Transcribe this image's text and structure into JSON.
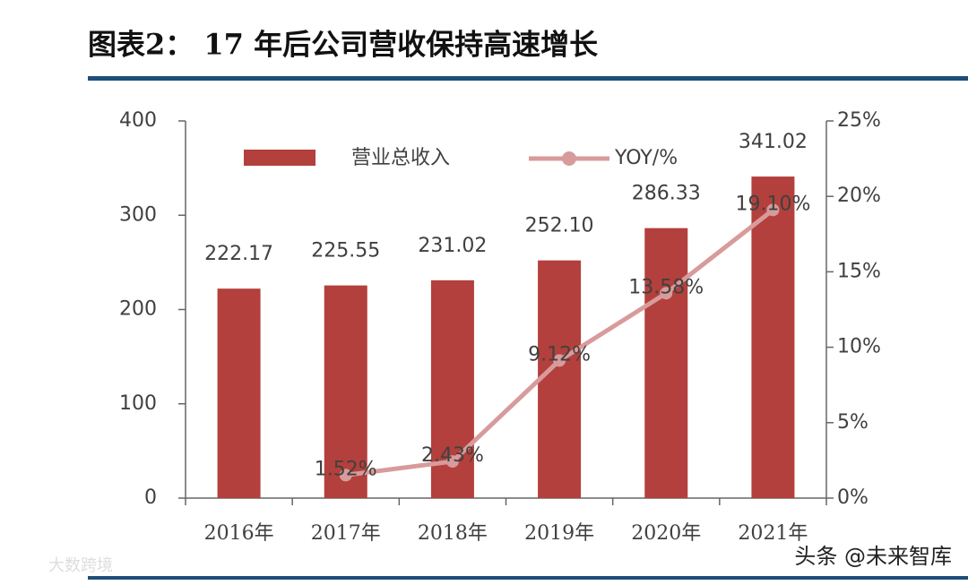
{
  "chart_data": {
    "type": "bar",
    "title": "图表2：  17 年后公司营收保持高速增长",
    "categories": [
      "2016年",
      "2017年",
      "2018年",
      "2019年",
      "2020年",
      "2021年"
    ],
    "series": [
      {
        "name": "营业总收入",
        "type": "bar",
        "color": "#b3403c",
        "values": [
          222.17,
          225.55,
          231.02,
          252.1,
          286.33,
          341.02
        ],
        "value_labels": [
          "222.17",
          "225.55",
          "231.02",
          "252.10",
          "286.33",
          "341.02"
        ]
      },
      {
        "name": "YOY/%",
        "type": "line",
        "axis": "y2",
        "color": "#d89b9b",
        "values": [
          null,
          1.52,
          2.43,
          9.12,
          13.58,
          19.1
        ],
        "value_labels": [
          null,
          "1.52%",
          "2.43%",
          "9.12%",
          "13.58%",
          "19.10%"
        ]
      }
    ],
    "ylim": [
      0,
      400
    ],
    "yticks": [
      0,
      100,
      200,
      300,
      400
    ],
    "y2lim": [
      0,
      25
    ],
    "y2ticks": [
      {
        "value": 0,
        "label": "0%"
      },
      {
        "value": 5,
        "label": "5%"
      },
      {
        "value": 10,
        "label": "10%"
      },
      {
        "value": 15,
        "label": "15%"
      },
      {
        "value": 20,
        "label": "20%"
      },
      {
        "value": 25,
        "label": "25%"
      }
    ],
    "watermarks": [
      "头条 @未来智库",
      "大数跨境"
    ]
  }
}
